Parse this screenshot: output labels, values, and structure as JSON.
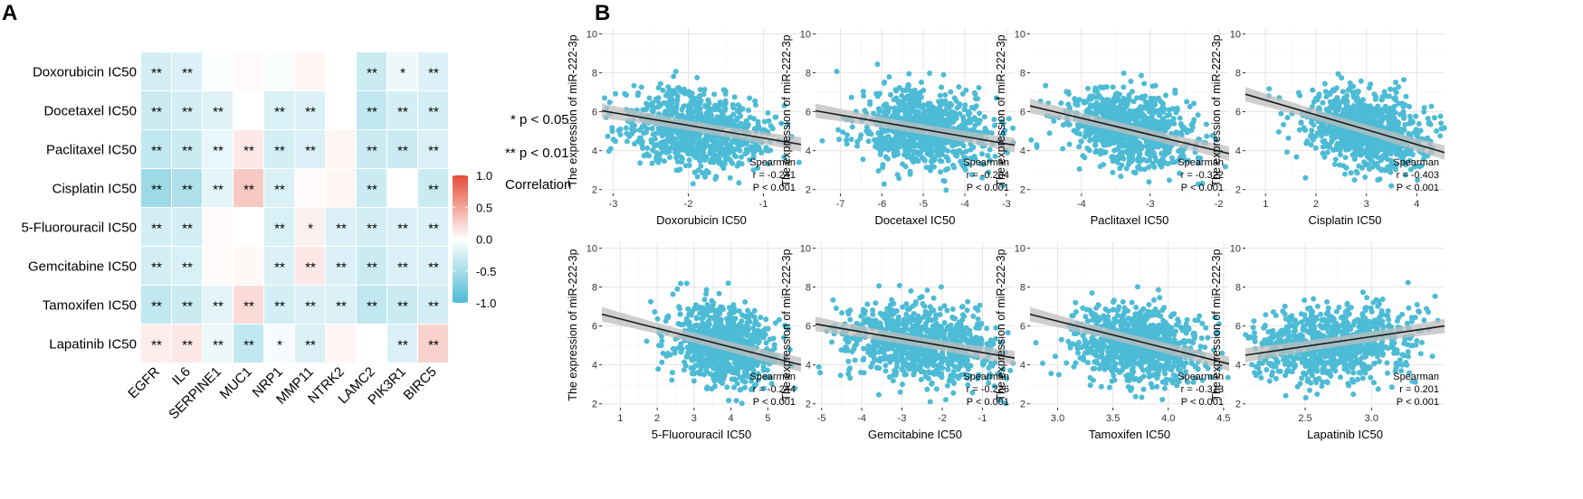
{
  "panel_a_label": "A",
  "panel_b_label": "B",
  "colors": {
    "positive": "#e64b35",
    "negative": "#4dbbd5",
    "neutral": "#ffffff",
    "point": "#4dbbd5",
    "regression_line": "#1a1a1a",
    "confidence_band": "#bdbdbd",
    "panel_background": "#ffffff",
    "grid": "#e5e5e5"
  },
  "significance_legend": [
    "* p < 0.05",
    "** p < 0.01"
  ],
  "chart_data": [
    {
      "type": "heatmap",
      "rows": [
        "Doxorubicin IC50",
        "Docetaxel IC50",
        "Paclitaxel IC50",
        "Cisplatin IC50",
        "5-Fluorouracil IC50",
        "Gemcitabine IC50",
        "Tamoxifen IC50",
        "Lapatinib IC50"
      ],
      "columns": [
        "EGFR",
        "IL6",
        "SERPINE1",
        "MUC1",
        "NRP1",
        "MMP11",
        "NTRK2",
        "LAMC2",
        "PIK3R1",
        "BIRC5"
      ],
      "values": [
        [
          -0.25,
          -0.2,
          -0.02,
          0.02,
          -0.03,
          0.05,
          0.0,
          -0.3,
          -0.1,
          -0.2
        ],
        [
          -0.3,
          -0.25,
          -0.18,
          0.0,
          -0.22,
          -0.2,
          0.0,
          -0.35,
          -0.25,
          -0.25
        ],
        [
          -0.35,
          -0.3,
          -0.12,
          0.12,
          -0.25,
          -0.2,
          0.05,
          -0.3,
          -0.3,
          -0.2
        ],
        [
          -0.55,
          -0.45,
          -0.15,
          0.3,
          -0.22,
          0.03,
          0.05,
          -0.3,
          0.0,
          -0.3
        ],
        [
          -0.25,
          -0.25,
          0.02,
          0.0,
          -0.22,
          0.08,
          -0.2,
          -0.25,
          -0.2,
          -0.2
        ],
        [
          -0.25,
          -0.22,
          0.02,
          0.04,
          -0.2,
          0.12,
          -0.2,
          -0.3,
          -0.2,
          -0.2
        ],
        [
          -0.35,
          -0.3,
          -0.15,
          0.2,
          -0.25,
          -0.2,
          -0.2,
          -0.35,
          -0.3,
          -0.25
        ],
        [
          0.1,
          0.12,
          -0.1,
          -0.35,
          -0.05,
          -0.2,
          0.05,
          0.0,
          -0.2,
          0.25
        ]
      ],
      "significance": [
        [
          "**",
          "**",
          "",
          "",
          "",
          "",
          "",
          "**",
          "*",
          "**"
        ],
        [
          "**",
          "**",
          "**",
          "",
          "**",
          "**",
          "",
          "**",
          "**",
          "**"
        ],
        [
          "**",
          "**",
          "**",
          "**",
          "**",
          "**",
          "",
          "**",
          "**",
          "**"
        ],
        [
          "**",
          "**",
          "**",
          "**",
          "**",
          "",
          "",
          "**",
          "",
          "**"
        ],
        [
          "**",
          "**",
          "",
          "",
          "**",
          "*",
          "**",
          "**",
          "**",
          "**"
        ],
        [
          "**",
          "**",
          "",
          "",
          "**",
          "**",
          "**",
          "**",
          "**",
          "**"
        ],
        [
          "**",
          "**",
          "**",
          "**",
          "**",
          "**",
          "**",
          "**",
          "**",
          "**"
        ],
        [
          "**",
          "**",
          "**",
          "**",
          "*",
          "**",
          "",
          "",
          "**",
          "**"
        ]
      ],
      "colorbar": {
        "title": "Correlation",
        "ticks": [
          "1.0",
          "0.5",
          "0.0",
          "-0.5",
          "-1.0"
        ],
        "range": [
          -1.0,
          1.0
        ]
      }
    },
    {
      "type": "scatter",
      "xlabel": "Doxorubicin IC50",
      "ylabel": "The expression of miR-222-3p",
      "xlim": [
        -3.15,
        -0.5
      ],
      "ylim": [
        1.8,
        10.3
      ],
      "xticks": [
        "-3",
        "-2",
        "-1"
      ],
      "yticks": [
        "2",
        "4",
        "6",
        "8",
        "10"
      ],
      "x_center": -1.9,
      "x_spread": 0.48,
      "y_center": 5.1,
      "y_spread": 0.95,
      "fit": {
        "x": [
          -3.15,
          -0.5
        ],
        "y": [
          6.05,
          4.32
        ]
      },
      "method": "Spearman",
      "r": "r = -0.241",
      "p": "P < 0.001"
    },
    {
      "type": "scatter",
      "xlabel": "Docetaxel IC50",
      "ylabel": "The expression of miR-222-3p",
      "xlim": [
        -7.6,
        -2.8
      ],
      "ylim": [
        1.8,
        10.3
      ],
      "xticks": [
        "-7",
        "-6",
        "-5",
        "-4",
        "-3"
      ],
      "yticks": [
        "2",
        "4",
        "6",
        "8",
        "10"
      ],
      "x_center": -5.0,
      "x_spread": 0.75,
      "y_center": 5.1,
      "y_spread": 0.95,
      "fit": {
        "x": [
          -7.6,
          -2.8
        ],
        "y": [
          6.05,
          4.28
        ]
      },
      "method": "Spearman",
      "r": "r = -0.204",
      "p": "P < 0.001"
    },
    {
      "type": "scatter",
      "xlabel": "Paclitaxel IC50",
      "ylabel": "The expression of miR-222-3p",
      "xlim": [
        -4.75,
        -1.85
      ],
      "ylim": [
        1.8,
        10.3
      ],
      "xticks": [
        "-4",
        "-3",
        "-2"
      ],
      "yticks": [
        "2",
        "4",
        "6",
        "8",
        "10"
      ],
      "x_center": -3.3,
      "x_spread": 0.45,
      "y_center": 5.1,
      "y_spread": 0.95,
      "fit": {
        "x": [
          -4.75,
          -1.85
        ],
        "y": [
          6.3,
          3.85
        ]
      },
      "method": "Spearman",
      "r": "r = -0.322",
      "p": "P < 0.001"
    },
    {
      "type": "scatter",
      "xlabel": "Cisplatin IC50",
      "ylabel": "The expression of miR-222-3p",
      "xlim": [
        0.6,
        4.55
      ],
      "ylim": [
        1.8,
        10.3
      ],
      "xticks": [
        "1",
        "2",
        "3",
        "4"
      ],
      "yticks": [
        "2",
        "4",
        "6",
        "8",
        "10"
      ],
      "x_center": 3.0,
      "x_spread": 0.6,
      "y_center": 5.1,
      "y_spread": 0.95,
      "fit": {
        "x": [
          0.6,
          4.55
        ],
        "y": [
          6.9,
          3.9
        ]
      },
      "method": "Spearman",
      "r": "r = -0.403",
      "p": "P < 0.001"
    },
    {
      "type": "scatter",
      "xlabel": "5-Fluorouracil IC50",
      "ylabel": "The expression of miR-222-3p",
      "xlim": [
        0.5,
        5.9
      ],
      "ylim": [
        1.8,
        10.3
      ],
      "xticks": [
        "1",
        "2",
        "3",
        "4",
        "5"
      ],
      "yticks": [
        "2",
        "4",
        "6",
        "8",
        "10"
      ],
      "x_center": 3.8,
      "x_spread": 0.7,
      "y_center": 5.0,
      "y_spread": 0.95,
      "fit": {
        "x": [
          0.5,
          5.9
        ],
        "y": [
          6.6,
          4.0
        ]
      },
      "method": "Spearman",
      "r": "r = -0.244",
      "p": "P < 0.001"
    },
    {
      "type": "scatter",
      "xlabel": "Gemcitabine IC50",
      "ylabel": "The expression of miR-222-3p",
      "xlim": [
        -5.15,
        -0.2
      ],
      "ylim": [
        1.8,
        10.3
      ],
      "xticks": [
        "-5",
        "-4",
        "-3",
        "-2",
        "-1"
      ],
      "yticks": [
        "2",
        "4",
        "6",
        "8",
        "10"
      ],
      "x_center": -2.5,
      "x_spread": 0.95,
      "y_center": 5.1,
      "y_spread": 0.95,
      "fit": {
        "x": [
          -5.15,
          -0.2
        ],
        "y": [
          6.1,
          4.35
        ]
      },
      "method": "Spearman",
      "r": "r = -0.226",
      "p": "P < 0.001"
    },
    {
      "type": "scatter",
      "xlabel": "Tamoxifen IC50",
      "ylabel": "The expression of miR-222-3p",
      "xlim": [
        2.75,
        4.55
      ],
      "ylim": [
        1.8,
        10.3
      ],
      "xticks": [
        "3.0",
        "3.5",
        "4.0",
        "4.5"
      ],
      "yticks": [
        "2",
        "4",
        "6",
        "8",
        "10"
      ],
      "x_center": 3.7,
      "x_spread": 0.3,
      "y_center": 5.1,
      "y_spread": 0.95,
      "fit": {
        "x": [
          2.75,
          4.55
        ],
        "y": [
          6.6,
          4.05
        ]
      },
      "method": "Spearman",
      "r": "r = -0.313",
      "p": "P < 0.001"
    },
    {
      "type": "scatter",
      "xlabel": "Lapatinib IC50",
      "ylabel": "The expression of miR-222-3p",
      "xlim": [
        2.05,
        3.55
      ],
      "ylim": [
        1.8,
        10.3
      ],
      "xticks": [
        "2.5",
        "3.0"
      ],
      "yticks": [
        "2",
        "4",
        "6",
        "8",
        "10"
      ],
      "x_center": 2.7,
      "x_spread": 0.3,
      "y_center": 5.1,
      "y_spread": 0.95,
      "fit": {
        "x": [
          2.05,
          3.55
        ],
        "y": [
          4.5,
          6.0
        ]
      },
      "method": "Spearman",
      "r": "r = 0.201",
      "p": "P < 0.001"
    }
  ]
}
